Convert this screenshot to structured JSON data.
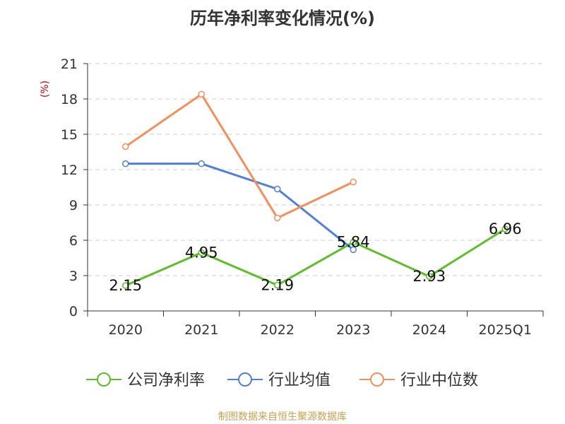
{
  "chart_data": {
    "type": "line",
    "title": "历年净利率变化情况(%)",
    "ylabel": "(%)",
    "xlabel": "",
    "categories": [
      "2020",
      "2021",
      "2022",
      "2023",
      "2024",
      "2025Q1"
    ],
    "ylim": [
      0,
      21
    ],
    "yticks": [
      0,
      3,
      6,
      9,
      12,
      15,
      18,
      21
    ],
    "grid": "horizontal dashed",
    "legend_position": "bottom",
    "series": [
      {
        "name": "公司净利率",
        "color": "#5cbf2a",
        "values": [
          2.15,
          4.95,
          2.19,
          5.84,
          2.93,
          6.96
        ],
        "show_labels": true
      },
      {
        "name": "行业均值",
        "color": "#4f7fdd",
        "values": [
          12.5,
          12.5,
          10.35,
          5.2,
          null,
          null
        ],
        "show_labels": false
      },
      {
        "name": "行业中位数",
        "color": "#f68e5c",
        "values": [
          13.95,
          18.4,
          7.9,
          10.95,
          null,
          null
        ],
        "show_labels": false
      }
    ]
  },
  "source": "制图数据来自恒生聚源数据库"
}
